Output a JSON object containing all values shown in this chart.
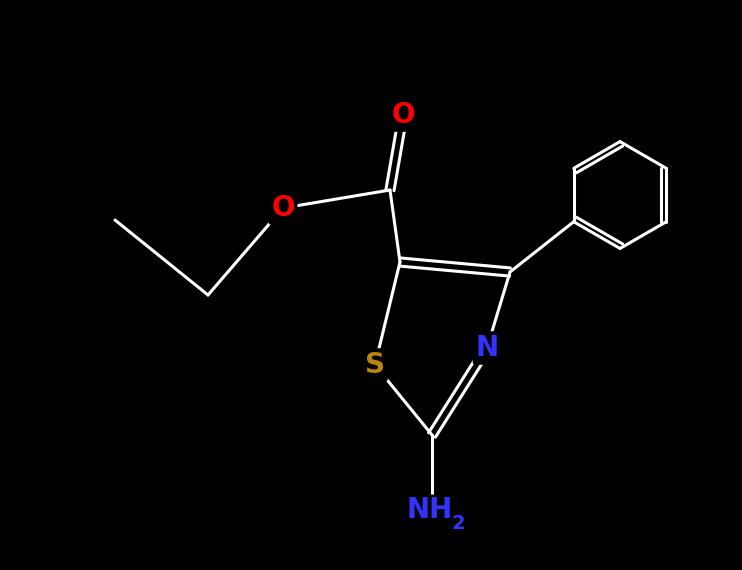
{
  "background_color": "#000000",
  "atom_colors": {
    "N": "#3333ff",
    "O": "#ff0000",
    "S": "#b8860b"
  },
  "bond_color": "#ffffff",
  "line_width": 2.2,
  "font_size_atom": 20,
  "font_size_subscript": 14,
  "fig_width": 7.42,
  "fig_height": 5.7,
  "dpi": 100,
  "xlim": [
    0,
    10
  ],
  "ylim": [
    0,
    7.68
  ]
}
